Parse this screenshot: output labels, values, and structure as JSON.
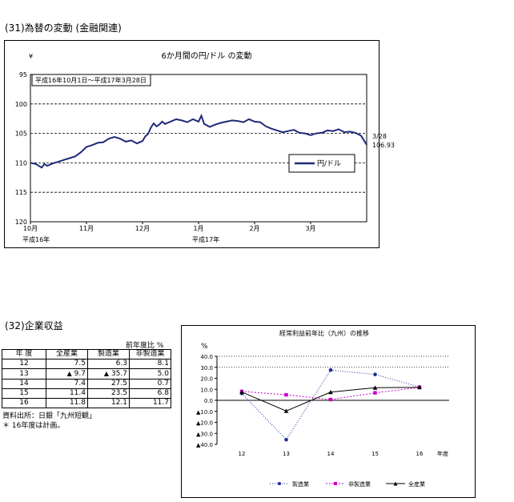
{
  "section31": {
    "title": "(31)為替の変動 (金融関連)"
  },
  "fx_chart": {
    "unit": "¥",
    "title": "6か月間の円/ドル の変動",
    "period_note": "平成16年10月1日～平成17年3月28日",
    "end_label_date": "3/28",
    "end_label_value": "106.93",
    "legend": "円/ドル",
    "x_sublabel_left": "平成16年",
    "x_sublabel_mid": "平成17年"
  },
  "section32": {
    "title": "(32)企業収益",
    "table_note": "前年度比 %",
    "headers": [
      "年 度",
      "全産業",
      "製造業",
      "非製造業"
    ],
    "rows": [
      {
        "year": "12",
        "all": "7.5",
        "mfg": "6.3",
        "nonmfg": "8.1",
        "all_neg": false,
        "mfg_neg": false
      },
      {
        "year": "13",
        "all": "9.7",
        "mfg": "35.7",
        "nonmfg": "5.0",
        "all_neg": true,
        "mfg_neg": true
      },
      {
        "year": "14",
        "all": "7.4",
        "mfg": "27.5",
        "nonmfg": "0.7",
        "all_neg": false,
        "mfg_neg": false
      },
      {
        "year": "15",
        "all": "11.4",
        "mfg": "23.5",
        "nonmfg": "6.8",
        "all_neg": false,
        "mfg_neg": false
      },
      {
        "year": "16",
        "all": "11.8",
        "mfg": "12.1",
        "nonmfg": "11.7",
        "all_neg": false,
        "mfg_neg": false
      }
    ],
    "neg_marker": "▲",
    "source": "資料出所：日銀「九州短観」",
    "footnote": "＊ 16年度は計画。"
  },
  "profit_chart": {
    "title": "経常利益前年比（九州）の推移",
    "unit": "%",
    "x_unit": "年度",
    "legend": [
      "製造業",
      "非製造業",
      "全産業"
    ]
  },
  "chart_data": [
    {
      "type": "line",
      "title": "6か月間の円/ドル の変動",
      "ylabel": "¥",
      "ylim": [
        95,
        120
      ],
      "y_inverted": true,
      "yticks": [
        95,
        100,
        105,
        110,
        115,
        120
      ],
      "categories": [
        "10月",
        "11月",
        "12月",
        "1月",
        "2月",
        "3月"
      ],
      "x_range": [
        0,
        6
      ],
      "series": [
        {
          "name": "円/ドル",
          "x": [
            0.0,
            0.1,
            0.2,
            0.25,
            0.3,
            0.4,
            0.5,
            0.6,
            0.7,
            0.8,
            0.9,
            1.0,
            1.1,
            1.2,
            1.3,
            1.4,
            1.5,
            1.6,
            1.7,
            1.8,
            1.9,
            2.0,
            2.05,
            2.1,
            2.15,
            2.2,
            2.25,
            2.3,
            2.35,
            2.4,
            2.5,
            2.6,
            2.7,
            2.8,
            2.9,
            3.0,
            3.05,
            3.1,
            3.2,
            3.3,
            3.4,
            3.5,
            3.6,
            3.7,
            3.8,
            3.9,
            4.0,
            4.1,
            4.2,
            4.3,
            4.4,
            4.5,
            4.6,
            4.7,
            4.8,
            4.9,
            5.0,
            5.1,
            5.2,
            5.3,
            5.4,
            5.5,
            5.6,
            5.7,
            5.8,
            5.9,
            6.0
          ],
          "values": [
            110.0,
            110.2,
            110.8,
            110.2,
            110.5,
            110.1,
            109.8,
            109.5,
            109.2,
            108.9,
            108.2,
            107.3,
            107.0,
            106.6,
            106.5,
            105.9,
            105.6,
            105.9,
            106.4,
            106.2,
            106.7,
            106.3,
            105.5,
            105.1,
            104.0,
            103.3,
            103.8,
            103.5,
            103.0,
            103.4,
            103.0,
            102.6,
            102.8,
            103.1,
            102.6,
            103.0,
            102.0,
            103.4,
            103.9,
            103.5,
            103.2,
            103.0,
            102.8,
            102.9,
            103.1,
            102.6,
            103.0,
            103.1,
            103.8,
            104.2,
            104.5,
            104.8,
            104.6,
            104.4,
            104.9,
            105.0,
            105.3,
            105.0,
            104.9,
            104.5,
            104.6,
            104.3,
            104.8,
            104.7,
            104.9,
            105.4,
            106.93
          ]
        }
      ]
    },
    {
      "type": "line",
      "title": "経常利益前年比（九州）の推移",
      "ylabel": "%",
      "xlabel": "年度",
      "ylim": [
        -40,
        40
      ],
      "yticks": [
        40,
        30,
        20,
        10,
        0,
        -10,
        -20,
        -30,
        -40
      ],
      "categories": [
        "12",
        "13",
        "14",
        "15",
        "16"
      ],
      "series": [
        {
          "name": "製造業",
          "values": [
            6.3,
            -35.7,
            27.5,
            23.5,
            12.1
          ]
        },
        {
          "name": "非製造業",
          "values": [
            8.1,
            5.0,
            0.7,
            6.8,
            11.7
          ]
        },
        {
          "name": "全産業",
          "values": [
            7.5,
            -9.7,
            7.4,
            11.4,
            11.8
          ]
        }
      ]
    }
  ]
}
